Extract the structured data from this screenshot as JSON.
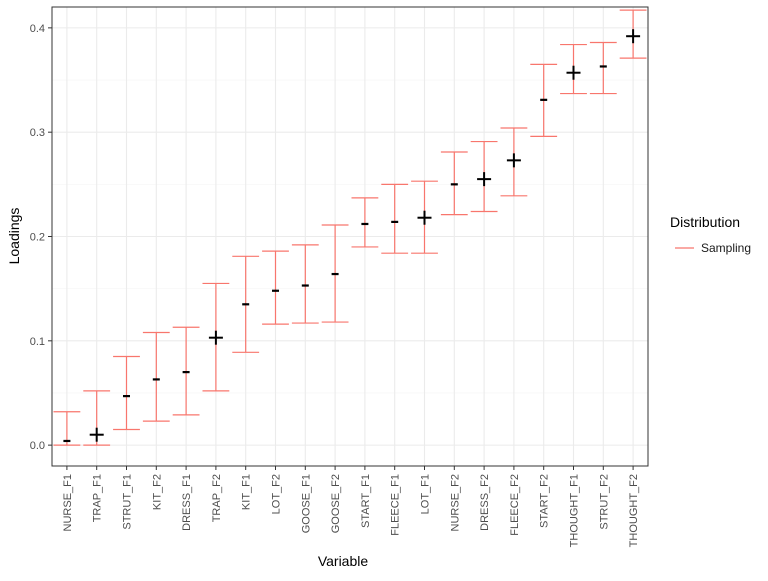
{
  "chart_data": {
    "type": "errorbar",
    "xlabel": "Variable",
    "ylabel": "Loadings",
    "categories": [
      "NURSE_F1",
      "TRAP_F1",
      "STRUT_F1",
      "KIT_F2",
      "DRESS_F1",
      "TRAP_F2",
      "KIT_F1",
      "LOT_F2",
      "GOOSE_F1",
      "GOOSE_F2",
      "START_F1",
      "FLEECE_F1",
      "LOT_F1",
      "NURSE_F2",
      "DRESS_F2",
      "FLEECE_F2",
      "START_F2",
      "THOUGHT_F1",
      "STRUT_F2",
      "THOUGHT_F2"
    ],
    "lower": [
      0.0,
      0.0,
      0.015,
      0.023,
      0.029,
      0.052,
      0.089,
      0.116,
      0.117,
      0.118,
      0.19,
      0.184,
      0.184,
      0.221,
      0.224,
      0.239,
      0.296,
      0.337,
      0.337,
      0.371
    ],
    "upper": [
      0.032,
      0.052,
      0.085,
      0.108,
      0.113,
      0.155,
      0.181,
      0.186,
      0.192,
      0.211,
      0.237,
      0.25,
      0.253,
      0.281,
      0.291,
      0.304,
      0.365,
      0.384,
      0.386,
      0.417
    ],
    "point_estimate": [
      0.004,
      0.01,
      0.047,
      0.063,
      0.07,
      0.103,
      0.135,
      0.148,
      0.153,
      0.164,
      0.212,
      0.214,
      0.218,
      0.25,
      0.255,
      0.273,
      0.331,
      0.357,
      0.363,
      0.392
    ],
    "marker": [
      "dash",
      "cross",
      "dash",
      "dash",
      "dash",
      "cross",
      "dash",
      "dash",
      "dash",
      "dash",
      "dash",
      "dash",
      "cross",
      "dash",
      "cross",
      "cross",
      "dash",
      "cross",
      "dash",
      "cross"
    ],
    "yticks": [
      "0.0",
      "0.1",
      "0.2",
      "0.3",
      "0.4"
    ],
    "ylim": [
      -0.02,
      0.42
    ],
    "legend": {
      "title": "Distribution",
      "entries": [
        "Sampling"
      ],
      "position": "right"
    },
    "colors": {
      "errorbar": "#F8766D",
      "marker": "#000000",
      "grid_major": "#EBEBEB",
      "grid_minor": "#F5F5F5",
      "panel_border": "#333333"
    },
    "grid": true
  }
}
